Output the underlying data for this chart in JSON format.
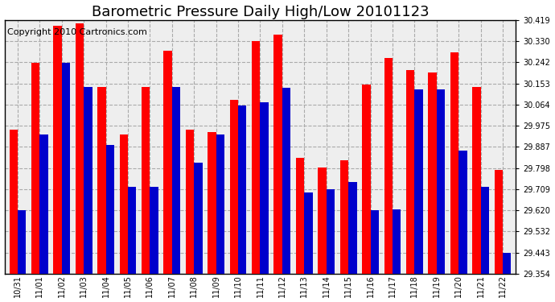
{
  "title": "Barometric Pressure Daily High/Low 20101123",
  "copyright": "Copyright 2010 Cartronics.com",
  "dates": [
    "10/31",
    "11/01",
    "11/02",
    "11/03",
    "11/04",
    "11/05",
    "11/06",
    "11/07",
    "11/08",
    "11/09",
    "11/10",
    "11/11",
    "11/12",
    "11/13",
    "11/14",
    "11/15",
    "11/16",
    "11/17",
    "11/18",
    "11/19",
    "11/20",
    "11/21",
    "11/22"
  ],
  "highs": [
    29.96,
    30.24,
    30.395,
    30.405,
    30.14,
    29.94,
    30.14,
    30.29,
    29.96,
    29.95,
    30.085,
    30.33,
    30.36,
    29.84,
    29.8,
    29.83,
    30.15,
    30.26,
    30.21,
    30.2,
    30.285,
    30.14,
    29.79
  ],
  "lows": [
    29.62,
    29.94,
    30.24,
    30.14,
    29.895,
    29.72,
    29.72,
    30.14,
    29.82,
    29.94,
    30.06,
    30.075,
    30.135,
    29.695,
    29.71,
    29.74,
    29.62,
    29.625,
    30.13,
    30.13,
    29.87,
    29.72,
    29.443
  ],
  "yticks": [
    29.354,
    29.443,
    29.532,
    29.62,
    29.709,
    29.798,
    29.887,
    29.975,
    30.064,
    30.153,
    30.242,
    30.33,
    30.419
  ],
  "ymin": 29.354,
  "ymax": 30.419,
  "bar_color_high": "#ff0000",
  "bar_color_low": "#0000cc",
  "grid_color": "#aaaaaa",
  "bg_color": "#ffffff",
  "plot_bg_color": "#eeeeee",
  "title_fontsize": 13,
  "copyright_fontsize": 8,
  "bar_width": 0.38
}
